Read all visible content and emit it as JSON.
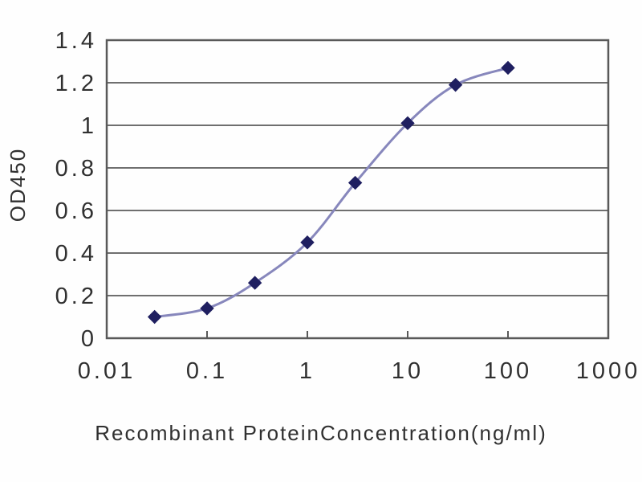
{
  "figure": {
    "background": "#fefefe",
    "description": "ELISA standard curve line chart"
  },
  "chart_data": {
    "type": "line",
    "x_scale": "log",
    "x": [
      0.03,
      0.1,
      0.3,
      1,
      3,
      10,
      30,
      100
    ],
    "series": [
      {
        "name": "OD450",
        "values": [
          0.1,
          0.14,
          0.26,
          0.45,
          0.73,
          1.01,
          1.19,
          1.27
        ]
      }
    ],
    "title": "",
    "xlabel": "Recombinant ProteinConcentration(ng/ml)",
    "ylabel": "OD450",
    "xlim": [
      0.01,
      1000
    ],
    "ylim": [
      0,
      1.4
    ],
    "x_ticks": [
      0.01,
      0.1,
      1,
      10,
      100,
      1000
    ],
    "x_tick_labels": [
      "0.01",
      "0.1",
      "1",
      "10",
      "100",
      "1000"
    ],
    "y_ticks": [
      0,
      0.2,
      0.4,
      0.6,
      0.8,
      1,
      1.2,
      1.4
    ],
    "y_tick_labels": [
      "0",
      "0.2",
      "0.4",
      "0.6",
      "0.8",
      "1",
      "1.2",
      "1.4"
    ],
    "grid": "horizontal",
    "legend": "none",
    "colors": {
      "line": "#8787bc",
      "marker": "#1f1f60",
      "grid": "#6f6f6f",
      "frame": "#595959",
      "text": "#303030"
    }
  }
}
